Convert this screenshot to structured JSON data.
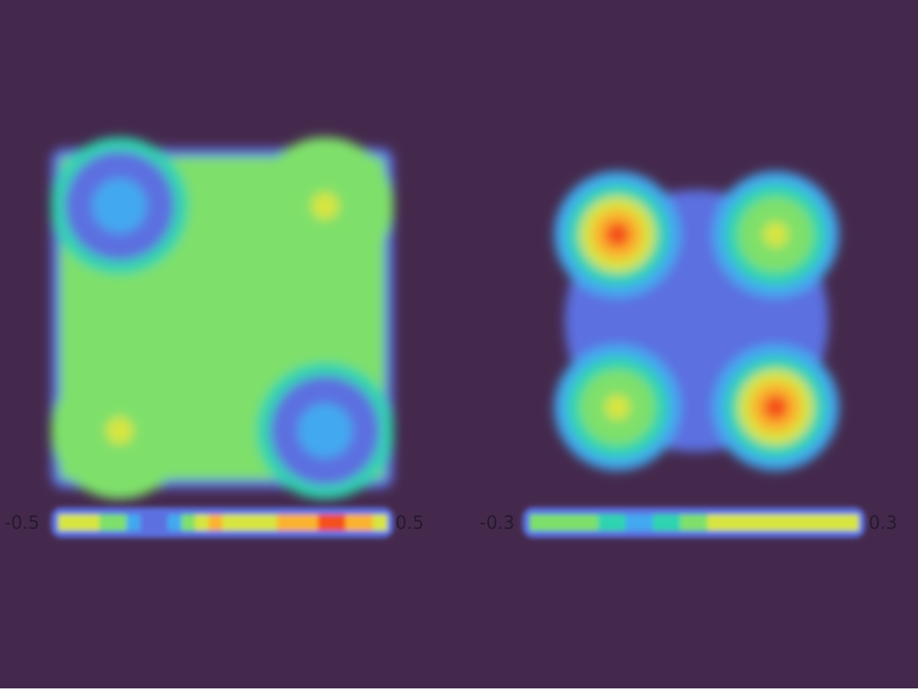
{
  "background": "#45294d",
  "colormap": [
    "#4d3a8a",
    "#5b6fe0",
    "#43a9f0",
    "#2fd4b0",
    "#7ee06a",
    "#d7e540",
    "#fbb22e",
    "#f4501f"
  ],
  "chart_data": [
    {
      "type": "heatmap",
      "title": "",
      "shape": "square",
      "colorbar": {
        "min": -0.5,
        "max": 0.5,
        "min_label": "-0.5",
        "max_label": "0.5"
      },
      "baseline": 0.0,
      "lobes": [
        {
          "quadrant": "top-left",
          "peak": -0.45
        },
        {
          "quadrant": "top-right",
          "peak": 0.15
        },
        {
          "quadrant": "bottom-left",
          "peak": 0.15
        },
        {
          "quadrant": "bottom-right",
          "peak": -0.45
        }
      ]
    },
    {
      "type": "heatmap",
      "title": "",
      "shape": "circle",
      "colorbar": {
        "min": -0.3,
        "max": 0.3,
        "min_label": "-0.3",
        "max_label": "0.3"
      },
      "baseline": -0.1,
      "lobes": [
        {
          "quadrant": "top-left",
          "peak": 0.28
        },
        {
          "quadrant": "top-right",
          "peak": 0.1
        },
        {
          "quadrant": "bottom-left",
          "peak": 0.1
        },
        {
          "quadrant": "bottom-right",
          "peak": 0.28
        }
      ]
    }
  ]
}
